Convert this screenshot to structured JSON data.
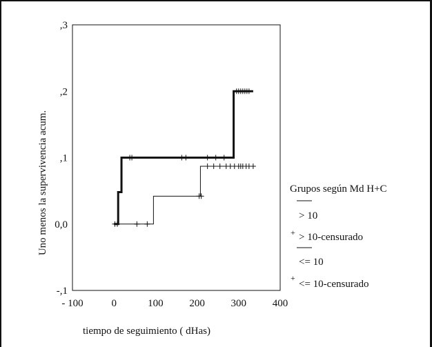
{
  "chart_data": {
    "type": "line",
    "title": "",
    "xlabel": "tiempo de seguimiento ( dHas)",
    "ylabel": "Uno menos la supervivencia acum.",
    "xlim": [
      -100,
      400
    ],
    "ylim": [
      -0.1,
      0.3
    ],
    "x_ticks": [
      "- 100",
      "0",
      "100",
      "200",
      "300",
      "400"
    ],
    "y_ticks": [
      ",3",
      ",2",
      ",1",
      "0,0",
      "-,1"
    ],
    "x_tick_values": [
      -100,
      0,
      100,
      200,
      300,
      400
    ],
    "y_tick_values": [
      0.3,
      0.2,
      0.1,
      0.0,
      -0.1
    ],
    "grid": false,
    "legend_placement": "right",
    "legend_title": "Grupos según Md H+C",
    "series": [
      {
        "name": "> 10",
        "line_weight": "thick",
        "color": "#111111",
        "step_x": [
          0,
          10,
          10,
          18,
          18,
          288,
          288,
          335
        ],
        "step_y": [
          0.0,
          0.0,
          0.048,
          0.048,
          0.1,
          0.1,
          0.2,
          0.2
        ],
        "censored_x": [
          2,
          8,
          38,
          43,
          163,
          173,
          225,
          245,
          265,
          295,
          300,
          305,
          310,
          315,
          320,
          325
        ],
        "censored_y": [
          0.0,
          0.0,
          0.1,
          0.1,
          0.1,
          0.1,
          0.1,
          0.1,
          0.1,
          0.2,
          0.2,
          0.2,
          0.2,
          0.2,
          0.2,
          0.2
        ]
      },
      {
        "name": "<= 10",
        "line_weight": "thin",
        "color": "#111111",
        "step_x": [
          0,
          95,
          95,
          208,
          208,
          335
        ],
        "step_y": [
          0.0,
          0.0,
          0.042,
          0.042,
          0.087,
          0.087
        ],
        "censored_x": [
          55,
          80,
          205,
          210,
          225,
          240,
          255,
          270,
          280,
          290,
          300,
          305,
          310,
          318,
          325,
          335
        ],
        "censored_y": [
          0.0,
          0.0,
          0.042,
          0.042,
          0.087,
          0.087,
          0.087,
          0.087,
          0.087,
          0.087,
          0.087,
          0.087,
          0.087,
          0.087,
          0.087,
          0.087
        ]
      }
    ],
    "legend_entries": [
      "> 10",
      "> 10-censurado",
      "<= 10",
      "<= 10-censurado"
    ],
    "legend_symbol_plus": "+"
  }
}
